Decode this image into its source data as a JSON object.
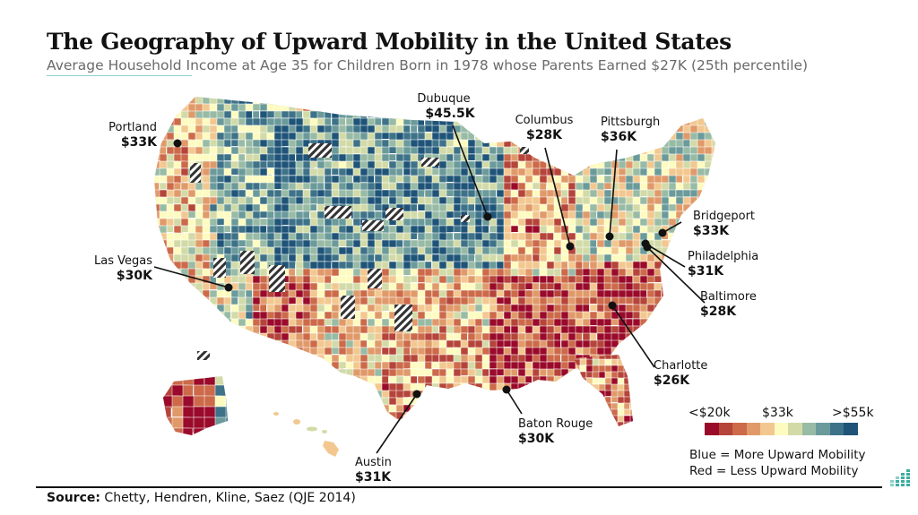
{
  "header": {
    "title": "The Geography of Upward Mobility in the United States",
    "subtitle": "Average Household Income at Age 35 for Children Born in 1978 whose Parents Earned $27K (25th percentile)"
  },
  "map": {
    "type": "choropleth",
    "geography": "US counties",
    "metric": "Average household income at age 35, children of 25th-percentile parents",
    "insufficient_data_pattern": "diagonal-hatch",
    "callouts": [
      {
        "city": "Portland",
        "value": "$33K"
      },
      {
        "city": "Las Vegas",
        "value": "$30K"
      },
      {
        "city": "Dubuque",
        "value": "$45.5K"
      },
      {
        "city": "Columbus",
        "value": "$28K"
      },
      {
        "city": "Pittsburgh",
        "value": "$36K"
      },
      {
        "city": "Bridgeport",
        "value": "$33K"
      },
      {
        "city": "Philadelphia",
        "value": "$31K"
      },
      {
        "city": "Baltimore",
        "value": "$28K"
      },
      {
        "city": "Charlotte",
        "value": "$26K"
      },
      {
        "city": "Baton Rouge",
        "value": "$30K"
      },
      {
        "city": "Austin",
        "value": "$31K"
      }
    ]
  },
  "legend": {
    "low_label": "<$20k",
    "mid_label": "$33k",
    "high_label": ">$55k",
    "colors": [
      "#9a0a2a",
      "#b5443a",
      "#cc6a4a",
      "#e09a6a",
      "#f2c890",
      "#fdfbc0",
      "#d2dba8",
      "#98bba5",
      "#6b9a9a",
      "#3e7288",
      "#1f5478"
    ],
    "note_blue": "Blue = More Upward Mobility",
    "note_red": "Red = Less Upward Mobility"
  },
  "footer": {
    "source_label": "Source:",
    "source_text": " Chetty, Hendren, Kline, Saez (QJE 2014)"
  }
}
